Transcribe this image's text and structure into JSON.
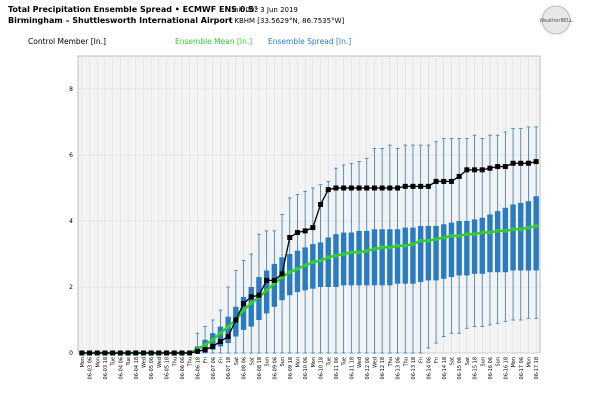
{
  "chart_data": {
    "type": "ensemble",
    "title": "Total Precipitation Ensemble Spread • ECMWF ENS 0.5°",
    "init": "Init 00z 3 Jun 2019",
    "subtitle": "Birmingham – Shuttlesworth International Airport",
    "station": "• KBHM [33.5629°N, 86.7535°W]",
    "logo": "WeatherBELL",
    "categories": [
      "Mon",
      "06-03 06",
      "Mon",
      "06-03 18",
      "Tue",
      "06-04 06",
      "Tue",
      "06-04 18",
      "Wed",
      "06-05 06",
      "Wed",
      "06-05 18",
      "Thu",
      "06-06 06",
      "Thu",
      "06-06 18",
      "Fri",
      "06-07 06",
      "Fri",
      "06-07 18",
      "Sat",
      "06-08 06",
      "Sat",
      "06-08 18",
      "Sun",
      "06-09 06",
      "Sun",
      "06-09 18",
      "Mon",
      "06-10 06",
      "Mon",
      "06-10 18",
      "Tue",
      "06-11 06",
      "Tue",
      "06-11 18",
      "Wed",
      "06-12 06",
      "Wed",
      "06-12 18",
      "Thu",
      "06-13 06",
      "Thu",
      "06-13 18",
      "Fri",
      "06-14 06",
      "Fri",
      "06-14 18",
      "Sat",
      "06-15 06",
      "Sat",
      "06-15 18",
      "Sun",
      "06-16 06",
      "Sun",
      "06-16 18",
      "Mon",
      "06-17 06",
      "Mon",
      "06-17 18"
    ],
    "ylim": [
      0,
      9
    ],
    "yticks": [
      0,
      2,
      4,
      6,
      8
    ],
    "grid": true,
    "series": [
      {
        "name": "Control Member [In.]",
        "color": "#000000",
        "values": [
          0,
          0,
          0,
          0,
          0,
          0,
          0,
          0,
          0,
          0,
          0,
          0,
          0,
          0,
          0,
          0.05,
          0.1,
          0.2,
          0.35,
          0.5,
          1.0,
          1.5,
          1.7,
          1.75,
          2.2,
          2.2,
          2.4,
          3.5,
          3.65,
          3.7,
          3.8,
          4.5,
          4.95,
          5.0,
          5.0,
          5.0,
          5.0,
          5.0,
          5.0,
          5.0,
          5.0,
          5.0,
          5.05,
          5.05,
          5.05,
          5.05,
          5.2,
          5.2,
          5.2,
          5.35,
          5.55,
          5.55,
          5.55,
          5.6,
          5.65,
          5.65,
          5.75,
          5.75,
          5.75,
          5.8
        ]
      },
      {
        "name": "Ensemble Mean [In.]",
        "color": "#33cc33",
        "values": [
          0,
          0,
          0,
          0,
          0,
          0,
          0,
          0,
          0,
          0,
          0,
          0,
          0,
          0,
          0,
          0.1,
          0.25,
          0.4,
          0.6,
          0.8,
          1.0,
          1.3,
          1.5,
          1.7,
          1.9,
          2.1,
          2.3,
          2.45,
          2.55,
          2.65,
          2.75,
          2.8,
          2.9,
          2.95,
          3.0,
          3.05,
          3.05,
          3.1,
          3.15,
          3.2,
          3.2,
          3.25,
          3.25,
          3.3,
          3.4,
          3.4,
          3.45,
          3.5,
          3.55,
          3.55,
          3.6,
          3.6,
          3.65,
          3.65,
          3.7,
          3.7,
          3.75,
          3.75,
          3.8,
          3.85
        ]
      },
      {
        "name": "Ensemble Spread [In.]",
        "color": "#2b7bc0",
        "q1": [
          0,
          0,
          0,
          0,
          0,
          0,
          0,
          0,
          0,
          0,
          0,
          0,
          0,
          0,
          0,
          0,
          0,
          0.1,
          0.2,
          0.3,
          0.5,
          0.7,
          0.8,
          1.0,
          1.2,
          1.4,
          1.6,
          1.75,
          1.85,
          1.9,
          1.95,
          2.0,
          2.0,
          2.0,
          2.05,
          2.05,
          2.05,
          2.05,
          2.05,
          2.05,
          2.05,
          2.1,
          2.1,
          2.1,
          2.15,
          2.2,
          2.2,
          2.25,
          2.3,
          2.35,
          2.35,
          2.4,
          2.4,
          2.45,
          2.45,
          2.45,
          2.5,
          2.5,
          2.5,
          2.5
        ],
        "q3": [
          0,
          0,
          0,
          0,
          0,
          0,
          0,
          0,
          0,
          0,
          0,
          0,
          0,
          0,
          0,
          0.2,
          0.4,
          0.6,
          0.8,
          1.1,
          1.4,
          1.7,
          2.0,
          2.3,
          2.5,
          2.7,
          2.9,
          3.0,
          3.1,
          3.2,
          3.3,
          3.35,
          3.5,
          3.6,
          3.65,
          3.65,
          3.7,
          3.7,
          3.75,
          3.75,
          3.75,
          3.75,
          3.8,
          3.8,
          3.85,
          3.85,
          3.85,
          3.9,
          3.95,
          4.0,
          4.0,
          4.05,
          4.1,
          4.2,
          4.3,
          4.4,
          4.5,
          4.55,
          4.6,
          4.75
        ],
        "min": [
          0,
          0,
          0,
          0,
          0,
          0,
          0,
          0,
          0,
          0,
          0,
          0,
          0,
          0,
          0,
          0,
          0,
          0,
          0,
          0,
          0,
          0,
          0,
          0,
          0,
          0,
          0,
          0,
          0,
          0,
          0,
          0,
          0,
          0,
          0,
          0,
          0,
          0,
          0,
          0,
          0,
          0,
          0,
          0,
          0,
          0.15,
          0.3,
          0.5,
          0.6,
          0.6,
          0.75,
          0.8,
          0.8,
          0.85,
          0.9,
          0.95,
          1.0,
          1.0,
          1.05,
          1.05
        ],
        "max": [
          0,
          0,
          0,
          0,
          0,
          0,
          0,
          0,
          0,
          0,
          0,
          0,
          0,
          0,
          0,
          0.6,
          0.8,
          1.0,
          1.3,
          2.0,
          2.5,
          2.8,
          3.0,
          3.6,
          3.7,
          3.7,
          4.2,
          4.7,
          4.8,
          4.9,
          5.0,
          5.1,
          5.2,
          5.6,
          5.7,
          5.75,
          5.8,
          5.9,
          6.2,
          6.2,
          6.3,
          6.2,
          6.3,
          6.3,
          6.3,
          6.3,
          6.4,
          6.5,
          6.5,
          6.5,
          6.5,
          6.6,
          6.5,
          6.6,
          6.6,
          6.7,
          6.8,
          6.8,
          6.85,
          6.85
        ]
      }
    ]
  }
}
